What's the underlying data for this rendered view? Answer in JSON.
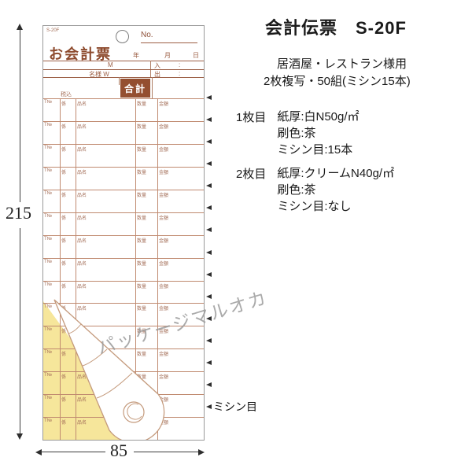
{
  "product": {
    "title": "会計伝票　S-20F",
    "subtitle1": "居酒屋・レストラン様用",
    "subtitle2": "2枚複写・50組(ミシン15本)",
    "sheets": [
      {
        "label": "1枚目",
        "paper": "紙厚:白N50g/㎡",
        "ink": "刷色:茶",
        "perforation": "ミシン目:15本"
      },
      {
        "label": "2枚目",
        "paper": "紙厚:クリームN40g/㎡",
        "ink": "刷色:茶",
        "perforation": "ミシン目:なし"
      }
    ]
  },
  "slip": {
    "code": "S-20F",
    "no_label": "No.",
    "title": "お会計票",
    "date_year": "年",
    "date_month": "月",
    "date_day": "日",
    "m_label": "M",
    "guests_label": "名様 W",
    "in_label": "入",
    "out_label": "出",
    "colon": ":",
    "receipt_label": "レシートNo.",
    "tax_label": "税込",
    "total_label": "合計",
    "row_labels": {
      "col1": "T№",
      "col2": "係",
      "name": "品名",
      "qty": "数量",
      "amount": "金額"
    },
    "row_count": 15,
    "perforation_count": 15
  },
  "dimensions": {
    "height_mm": "215",
    "width_mm": "85"
  },
  "perforation_label": "ミシン目",
  "watermark": "パッケージマルオカ",
  "colors": {
    "print_brown": "#9c5f45",
    "fill_brown": "#944f30",
    "copy_sheet_yellow": "#f6e69b",
    "watermark_gray": "#9c9c9c"
  }
}
